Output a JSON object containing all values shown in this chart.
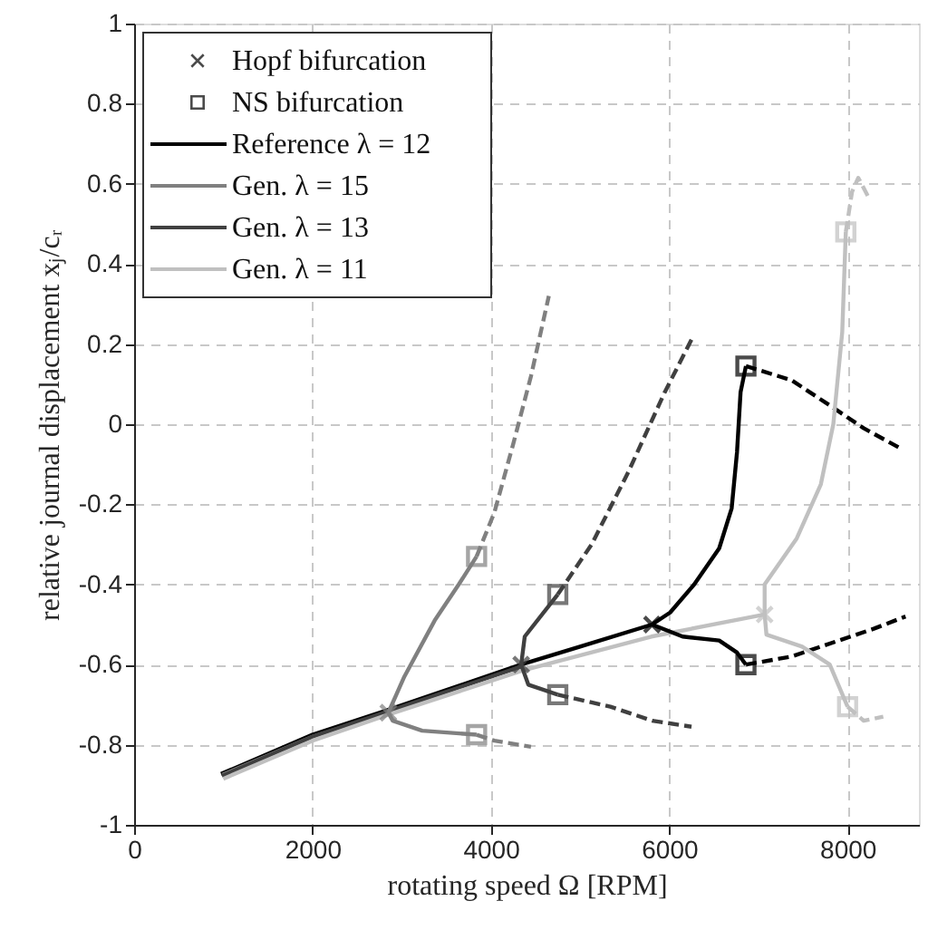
{
  "chart_data": {
    "type": "line",
    "xlabel": "rotating speed Ω [RPM]",
    "ylabel": "relative journal displacement xⱼ/cᵣ",
    "xlim": [
      0,
      8800
    ],
    "ylim": [
      -1,
      1
    ],
    "xticks": [
      0,
      2000,
      4000,
      6000,
      8000
    ],
    "yticks": [
      -1,
      -0.8,
      -0.6,
      -0.4,
      -0.2,
      0,
      0.2,
      0.4,
      0.6,
      0.8,
      1
    ],
    "grid": true,
    "legend": "top left",
    "series": [
      {
        "name": "Hopf bifurcation",
        "type": "scatter",
        "marker": "cross",
        "colors": [
          "#000000",
          "#808080",
          "#404040",
          "#c0c0c0"
        ],
        "x": [
          5807,
          2850,
          4340,
          7070
        ],
        "values": [
          -0.5,
          -0.72,
          -0.6,
          -0.475
        ]
      },
      {
        "name": "NS bifurcation",
        "type": "scatter",
        "marker": "square",
        "colors": [
          "#000000",
          "#000000",
          "#808080",
          "#808080",
          "#404040",
          "#404040",
          "#c0c0c0",
          "#c0c0c0"
        ],
        "x": [
          6860,
          6860,
          3840,
          3840,
          4750,
          4750,
          7980,
          8000
        ],
        "values": [
          0.145,
          -0.6,
          -0.33,
          -0.775,
          -0.425,
          -0.675,
          0.48,
          -0.705
        ]
      },
      {
        "name": "Reference λ = 12",
        "line_style": "solid",
        "color": "#000000",
        "x": [
          975,
          2000,
          2820,
          4340,
          5000,
          5807
        ],
        "values": [
          -0.873,
          -0.775,
          -0.715,
          -0.6,
          -0.555,
          -0.5
        ]
      },
      {
        "name": "Gen. λ = 15",
        "line_style": "solid",
        "color": "#808080",
        "x": [
          990,
          2000,
          2850
        ],
        "values": [
          -0.875,
          -0.78,
          -0.72
        ]
      },
      {
        "name": "Gen. λ = 13",
        "line_style": "solid",
        "color": "#404040",
        "x": [
          985,
          2000,
          2830,
          4340
        ],
        "values": [
          -0.878,
          -0.78,
          -0.718,
          -0.605
        ]
      },
      {
        "name": "Gen. λ = 11",
        "line_style": "solid",
        "color": "#c0c0c0",
        "x": [
          1000,
          2000,
          2850,
          4350,
          5800,
          7070
        ],
        "values": [
          -0.885,
          -0.79,
          -0.725,
          -0.615,
          -0.53,
          -0.475
        ]
      },
      {
        "type": "line",
        "line_style": "solid",
        "color": "#000000",
        "x": [
          5807,
          6010,
          6280,
          6560,
          6700,
          6760,
          6800,
          6860
        ],
        "values": [
          -0.5,
          -0.47,
          -0.4,
          -0.31,
          -0.21,
          -0.07,
          0.08,
          0.145
        ]
      },
      {
        "type": "line",
        "line_style": "dashed",
        "color": "#000000",
        "x": [
          6860,
          7370,
          7780,
          8180,
          8590
        ],
        "values": [
          0.145,
          0.11,
          0.05,
          -0.01,
          -0.06
        ]
      },
      {
        "type": "line",
        "line_style": "solid",
        "color": "#000000",
        "x": [
          5807,
          6150,
          6560,
          6760,
          6860
        ],
        "values": [
          -0.5,
          -0.53,
          -0.54,
          -0.57,
          -0.6
        ]
      },
      {
        "type": "line",
        "line_style": "dashed",
        "color": "#000000",
        "x": [
          6860,
          7370,
          7900,
          8300,
          8650
        ],
        "values": [
          -0.6,
          -0.58,
          -0.54,
          -0.51,
          -0.48
        ]
      },
      {
        "type": "line",
        "line_style": "solid",
        "color": "#808080",
        "x": [
          2850,
          3030,
          3370,
          3640,
          3840
        ],
        "values": [
          -0.72,
          -0.63,
          -0.49,
          -0.4,
          -0.33
        ]
      },
      {
        "type": "line",
        "line_style": "dashed",
        "color": "#808080",
        "x": [
          3840,
          4040,
          4250,
          4450,
          4650
        ],
        "values": [
          -0.33,
          -0.22,
          -0.05,
          0.12,
          0.32
        ]
      },
      {
        "type": "line",
        "line_style": "solid",
        "color": "#808080",
        "x": [
          2850,
          2900,
          3230,
          3840
        ],
        "values": [
          -0.72,
          -0.74,
          -0.765,
          -0.775
        ]
      },
      {
        "type": "line",
        "line_style": "dashed",
        "color": "#808080",
        "x": [
          3840,
          4040,
          4450
        ],
        "values": [
          -0.775,
          -0.79,
          -0.805
        ]
      },
      {
        "type": "line",
        "line_style": "solid",
        "color": "#404040",
        "x": [
          4340,
          4380,
          4750
        ],
        "values": [
          -0.6,
          -0.53,
          -0.425
        ]
      },
      {
        "type": "line",
        "line_style": "dashed",
        "color": "#404040",
        "x": [
          4750,
          5130,
          5540,
          5950,
          6270
        ],
        "values": [
          -0.425,
          -0.3,
          -0.12,
          0.08,
          0.22
        ]
      },
      {
        "type": "line",
        "line_style": "solid",
        "color": "#404040",
        "x": [
          4340,
          4420,
          4750
        ],
        "values": [
          -0.6,
          -0.65,
          -0.675
        ]
      },
      {
        "type": "line",
        "line_style": "dashed",
        "color": "#404040",
        "x": [
          4750,
          5340,
          5810,
          6250
        ],
        "values": [
          -0.675,
          -0.705,
          -0.74,
          -0.755
        ]
      },
      {
        "type": "line",
        "line_style": "solid",
        "color": "#c0c0c0",
        "x": [
          7070,
          7070,
          7430,
          7700,
          7840,
          7940,
          7980
        ],
        "values": [
          -0.475,
          -0.4,
          -0.285,
          -0.15,
          0.0,
          0.23,
          0.48
        ]
      },
      {
        "type": "line",
        "line_style": "dashed",
        "color": "#c0c0c0",
        "x": [
          7980,
          8050,
          8120,
          8250
        ],
        "values": [
          0.48,
          0.58,
          0.615,
          0.56
        ]
      },
      {
        "type": "line",
        "line_style": "solid",
        "color": "#c0c0c0",
        "x": [
          7070,
          7090,
          7490,
          7800,
          8000
        ],
        "values": [
          -0.475,
          -0.525,
          -0.555,
          -0.6,
          -0.705
        ]
      },
      {
        "type": "line",
        "line_style": "dashed",
        "color": "#c0c0c0",
        "x": [
          8000,
          8180,
          8400
        ],
        "values": [
          -0.705,
          -0.74,
          -0.73
        ]
      }
    ]
  }
}
